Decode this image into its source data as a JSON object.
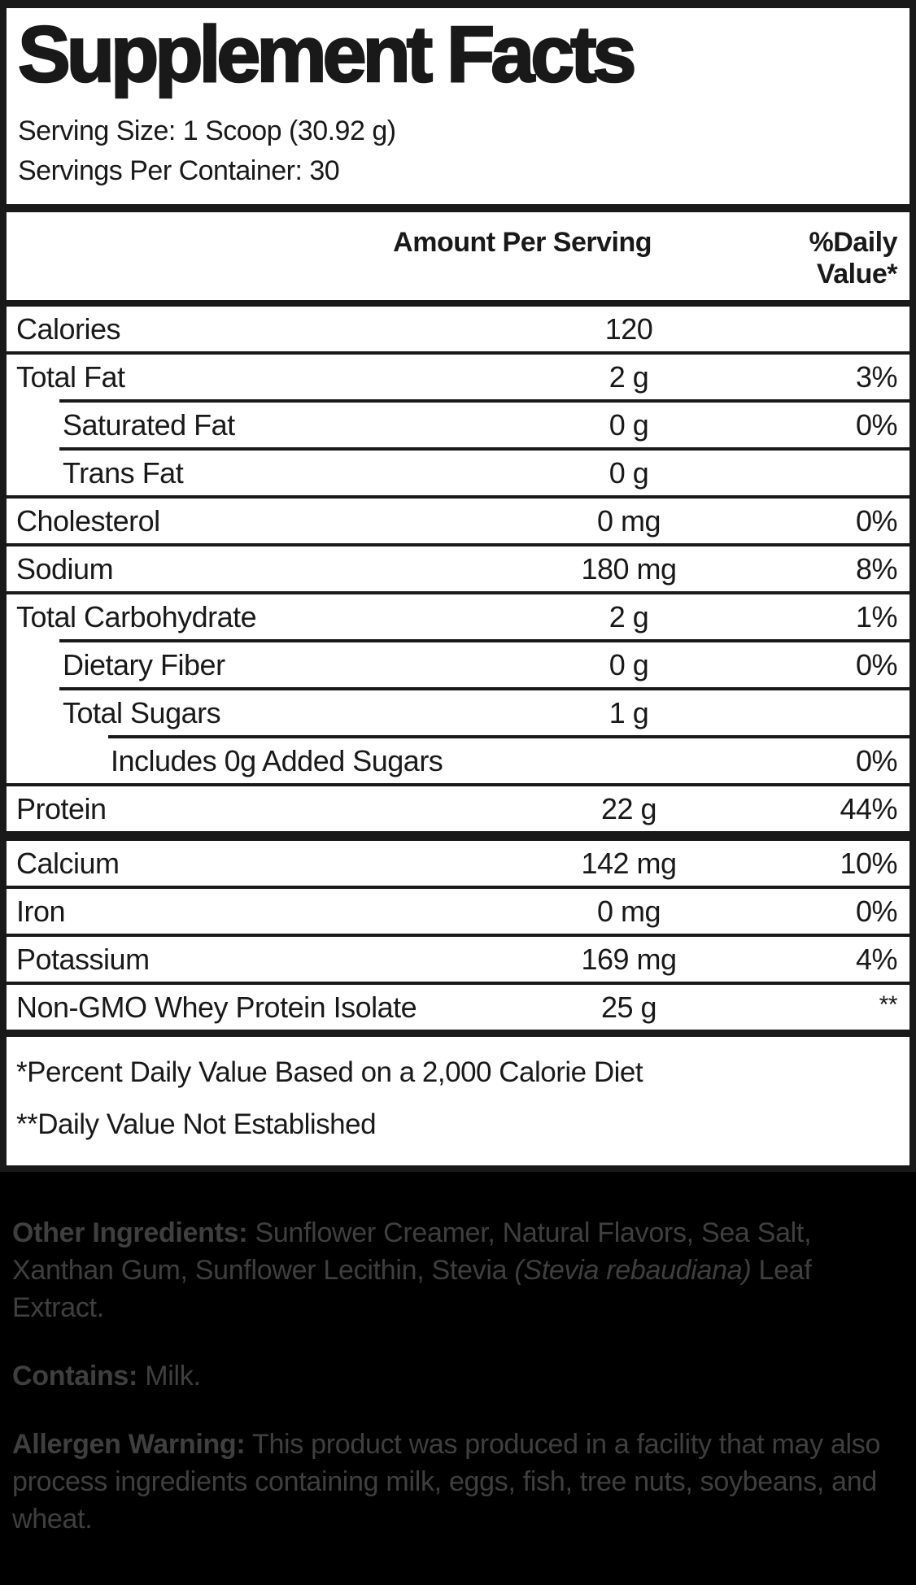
{
  "title": "Supplement Facts",
  "serving": {
    "serving_size": "Serving Size: 1 Scoop (30.92 g)",
    "servings_per_container": "Servings Per Container: 30"
  },
  "table": {
    "col_amount": "Amount Per Serving",
    "col_daily_value": "%Daily Value*",
    "rows": [
      {
        "name": "Calories",
        "amount": "120",
        "dv": ""
      },
      {
        "name": "Total Fat",
        "amount": "2 g",
        "dv": "3%"
      },
      {
        "name": "Saturated Fat",
        "amount": "0 g",
        "dv": "0%"
      },
      {
        "name": "Trans Fat",
        "amount": "0 g",
        "dv": ""
      },
      {
        "name": "Cholesterol",
        "amount": "0 mg",
        "dv": "0%"
      },
      {
        "name": "Sodium",
        "amount": "180 mg",
        "dv": "8%"
      },
      {
        "name": "Total Carbohydrate",
        "amount": "2 g",
        "dv": "1%"
      },
      {
        "name": "Dietary Fiber",
        "amount": "0 g",
        "dv": "0%"
      },
      {
        "name": "Total Sugars",
        "amount": "1 g",
        "dv": ""
      },
      {
        "name": "Includes 0g Added Sugars",
        "amount": "",
        "dv": "0%"
      },
      {
        "name": "Protein",
        "amount": "22 g",
        "dv": "44%"
      },
      {
        "name": "Calcium",
        "amount": "142 mg",
        "dv": "10%"
      },
      {
        "name": "Iron",
        "amount": "0 mg",
        "dv": "0%"
      },
      {
        "name": "Potassium",
        "amount": "169 mg",
        "dv": "4%"
      },
      {
        "name": "Non-GMO Whey Protein Isolate",
        "amount": "25 g",
        "dv": "**"
      }
    ]
  },
  "footnotes": {
    "daily_value": "*Percent Daily Value Based on a 2,000 Calorie Diet",
    "not_established": "**Daily Value Not Established"
  },
  "ingredients": {
    "other_label": "Other Ingredients:",
    "other_pre": " Sunflower Creamer, Natural Flavors, Sea Salt, Xanthan Gum, Sunflower Lecithin, Stevia ",
    "other_italic": "(Stevia rebaudiana)",
    "other_post": " Leaf Extract.",
    "contains_label": "Contains:",
    "contains_text": " Milk.",
    "allergen_label": "Allergen Warning:",
    "allergen_text": " This product was produced in a facility that may also process ingredients containing milk, eggs, fish, tree nuts, soybeans, and wheat."
  },
  "colors": {
    "label_background": "#ffffff",
    "label_ink": "#191919",
    "footer_background": "#000000",
    "footer_ink": "#3f3f3f"
  }
}
